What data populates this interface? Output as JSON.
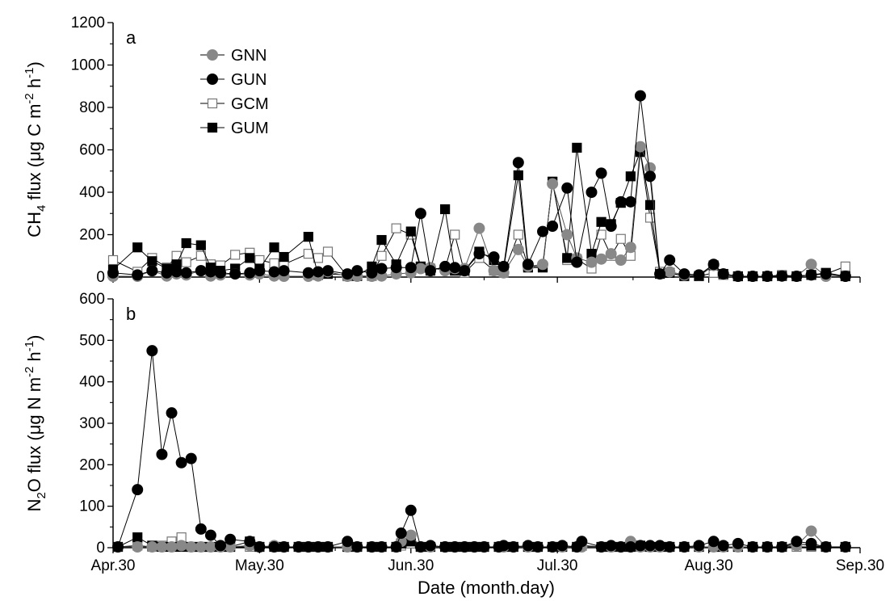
{
  "chart_data": [
    {
      "panel": "a",
      "type": "line",
      "xlabel": "Date (month.day)",
      "ylabel": "CH4 flux (μg C m-2 h-1)",
      "ylabel_parts": {
        "pre": "CH",
        "sub": "4",
        "mid": " flux (μg C m",
        "sup1": "-2",
        "mid2": " h",
        "sup2": "-1",
        "post": ")"
      },
      "x_tick_labels": [
        "Apr.30",
        "May.30",
        "Jun.30",
        "Jul.30",
        "Aug.30",
        "Sep.30"
      ],
      "x_tick_days": [
        0,
        30,
        61,
        91,
        122,
        153
      ],
      "xlim": [
        0,
        153
      ],
      "ylim": [
        0,
        1200
      ],
      "y_ticks": [
        0,
        200,
        400,
        600,
        800,
        1000,
        1200
      ],
      "legend_position": "top-left",
      "series": [
        {
          "name": "GNN",
          "marker": "circle",
          "fill": "#888888",
          "x": [
            0,
            5,
            8,
            11,
            13,
            15,
            18,
            20,
            22,
            25,
            28,
            30,
            33,
            35,
            40,
            42,
            44,
            48,
            50,
            53,
            55,
            58,
            61,
            63,
            65,
            68,
            70,
            72,
            75,
            78,
            80,
            83,
            85,
            88,
            90,
            93,
            95,
            98,
            100,
            102,
            104,
            106,
            108,
            110,
            112,
            114,
            117,
            120,
            123,
            125,
            128,
            131,
            134,
            137,
            140,
            143,
            146,
            150
          ],
          "y": [
            -20,
            -20,
            30,
            5,
            15,
            10,
            30,
            5,
            10,
            15,
            10,
            15,
            5,
            -10,
            0,
            5,
            25,
            -10,
            -5,
            0,
            5,
            15,
            20,
            40,
            45,
            30,
            40,
            40,
            230,
            30,
            20,
            130,
            50,
            60,
            440,
            200,
            90,
            70,
            85,
            110,
            80,
            140,
            615,
            515,
            15,
            25,
            10,
            10,
            55,
            15,
            -10,
            0,
            -10,
            5,
            -20,
            60,
            0,
            -20
          ]
        },
        {
          "name": "GUN",
          "marker": "circle",
          "fill": "#000000",
          "x": [
            0,
            5,
            8,
            11,
            13,
            15,
            18,
            20,
            22,
            25,
            28,
            30,
            33,
            35,
            40,
            42,
            44,
            48,
            50,
            53,
            55,
            58,
            61,
            63,
            65,
            68,
            70,
            72,
            75,
            78,
            80,
            83,
            85,
            88,
            90,
            93,
            95,
            98,
            100,
            102,
            104,
            106,
            108,
            110,
            112,
            114,
            117,
            120,
            123,
            125,
            128,
            131,
            134,
            137,
            140,
            143,
            146,
            150
          ],
          "y": [
            20,
            10,
            30,
            20,
            25,
            20,
            30,
            25,
            20,
            15,
            20,
            30,
            25,
            30,
            20,
            25,
            30,
            15,
            30,
            20,
            40,
            45,
            45,
            300,
            30,
            50,
            45,
            30,
            110,
            95,
            50,
            540,
            60,
            215,
            240,
            420,
            70,
            400,
            490,
            240,
            355,
            355,
            855,
            475,
            15,
            80,
            15,
            10,
            60,
            15,
            -15,
            -10,
            -15,
            5,
            -10,
            10,
            15,
            -10
          ]
        },
        {
          "name": "GCM",
          "marker": "square",
          "fill": "#ffffff",
          "x": [
            0,
            5,
            8,
            11,
            13,
            15,
            18,
            20,
            22,
            25,
            28,
            30,
            33,
            35,
            40,
            42,
            44,
            48,
            50,
            53,
            55,
            58,
            61,
            63,
            65,
            68,
            70,
            72,
            75,
            78,
            80,
            83,
            85,
            88,
            90,
            93,
            95,
            98,
            100,
            102,
            104,
            106,
            108,
            110,
            112,
            114,
            117,
            120,
            123,
            125,
            128,
            131,
            134,
            137,
            140,
            143,
            146,
            150
          ],
          "y": [
            80,
            25,
            90,
            45,
            100,
            70,
            100,
            60,
            55,
            105,
            115,
            80,
            65,
            60,
            110,
            90,
            120,
            0,
            5,
            5,
            100,
            230,
            200,
            45,
            40,
            40,
            200,
            20,
            90,
            30,
            20,
            200,
            50,
            50,
            450,
            80,
            85,
            40,
            200,
            100,
            180,
            100,
            590,
            280,
            25,
            20,
            -10,
            0,
            20,
            10,
            -20,
            -10,
            0,
            10,
            -10,
            10,
            15,
            50
          ]
        },
        {
          "name": "GUM",
          "marker": "square",
          "fill": "#000000",
          "x": [
            0,
            5,
            8,
            11,
            13,
            15,
            18,
            20,
            22,
            25,
            28,
            30,
            33,
            35,
            40,
            42,
            44,
            48,
            50,
            53,
            55,
            58,
            61,
            63,
            65,
            68,
            70,
            72,
            75,
            78,
            80,
            83,
            85,
            88,
            90,
            93,
            95,
            98,
            100,
            102,
            104,
            106,
            108,
            110,
            112,
            114,
            117,
            120,
            123,
            125,
            128,
            131,
            134,
            137,
            140,
            143,
            146,
            150
          ],
          "y": [
            35,
            140,
            75,
            40,
            60,
            160,
            150,
            45,
            30,
            40,
            90,
            40,
            140,
            95,
            190,
            10,
            15,
            10,
            5,
            50,
            175,
            60,
            215,
            50,
            30,
            320,
            30,
            30,
            120,
            80,
            40,
            480,
            45,
            45,
            450,
            90,
            610,
            110,
            260,
            250,
            350,
            475,
            590,
            340,
            15,
            20,
            5,
            5,
            55,
            15,
            0,
            -5,
            0,
            5,
            0,
            10,
            20,
            0
          ]
        }
      ]
    },
    {
      "panel": "b",
      "type": "line",
      "xlabel": "Date (month.day)",
      "ylabel": "N2O flux (μg N m-2 h-1)",
      "ylabel_parts": {
        "pre": "N",
        "sub": "2",
        "mid": "O flux (μg N m",
        "sup1": "-2",
        "mid2": " h",
        "sup2": "-1",
        "post": ")"
      },
      "x_tick_labels": [
        "Apr.30",
        "May.30",
        "Jun.30",
        "Jul.30",
        "Aug.30",
        "Sep.30"
      ],
      "x_tick_days": [
        0,
        30,
        61,
        91,
        122,
        153
      ],
      "xlim": [
        0,
        153
      ],
      "ylim": [
        0,
        600
      ],
      "y_ticks": [
        0,
        100,
        200,
        300,
        400,
        500,
        600
      ],
      "series": [
        {
          "name": "GNN",
          "marker": "circle",
          "fill": "#888888",
          "x": [
            1,
            5,
            8,
            10,
            12,
            14,
            16,
            18,
            20,
            22,
            24,
            28,
            30,
            33,
            35,
            38,
            40,
            42,
            44,
            48,
            50,
            53,
            55,
            58,
            59,
            61,
            63,
            65,
            68,
            70,
            72,
            74,
            76,
            79,
            80,
            82,
            85,
            87,
            90,
            92,
            95,
            96,
            100,
            102,
            104,
            106,
            108,
            110,
            112,
            114,
            117,
            120,
            123,
            125,
            128,
            131,
            134,
            137,
            140,
            143,
            146,
            150
          ],
          "y": [
            0,
            0,
            -5,
            0,
            0,
            5,
            0,
            0,
            0,
            0,
            0,
            5,
            0,
            5,
            0,
            0,
            -5,
            0,
            0,
            0,
            0,
            0,
            0,
            0,
            15,
            30,
            0,
            0,
            0,
            0,
            0,
            0,
            -5,
            0,
            0,
            0,
            0,
            -5,
            0,
            0,
            0,
            0,
            0,
            0,
            0,
            15,
            0,
            0,
            0,
            0,
            0,
            0,
            0,
            0,
            0,
            0,
            0,
            0,
            5,
            40,
            0,
            0
          ]
        },
        {
          "name": "GUN",
          "marker": "circle",
          "fill": "#000000",
          "x": [
            1,
            5,
            8,
            10,
            12,
            14,
            16,
            18,
            20,
            22,
            24,
            28,
            30,
            33,
            35,
            38,
            40,
            42,
            44,
            48,
            50,
            53,
            55,
            58,
            59,
            61,
            63,
            65,
            68,
            70,
            72,
            74,
            76,
            79,
            80,
            82,
            85,
            87,
            90,
            92,
            95,
            96,
            100,
            102,
            104,
            106,
            108,
            110,
            112,
            114,
            117,
            120,
            123,
            125,
            128,
            131,
            134,
            137,
            140,
            143,
            146,
            150
          ],
          "y": [
            0,
            140,
            475,
            225,
            325,
            205,
            215,
            45,
            30,
            5,
            20,
            15,
            0,
            0,
            0,
            0,
            0,
            0,
            0,
            15,
            0,
            0,
            0,
            0,
            35,
            90,
            0,
            5,
            0,
            0,
            0,
            0,
            0,
            0,
            5,
            0,
            5,
            0,
            0,
            5,
            0,
            15,
            0,
            5,
            0,
            0,
            5,
            5,
            5,
            0,
            0,
            5,
            15,
            5,
            10,
            0,
            0,
            0,
            15,
            10,
            0,
            0
          ]
        },
        {
          "name": "GCM",
          "marker": "square",
          "fill": "#ffffff",
          "x": [
            1,
            5,
            8,
            10,
            12,
            14,
            16,
            18,
            20,
            22,
            24,
            28,
            30,
            33,
            35,
            38,
            40,
            42,
            44,
            48,
            50,
            53,
            55,
            58,
            59,
            61,
            63,
            65,
            68,
            70,
            72,
            74,
            76,
            79,
            80,
            82,
            85,
            87,
            90,
            92,
            95,
            96,
            100,
            102,
            104,
            106,
            108,
            110,
            112,
            114,
            117,
            120,
            123,
            125,
            128,
            131,
            134,
            137,
            140,
            143,
            146,
            150
          ],
          "y": [
            -5,
            5,
            0,
            5,
            15,
            25,
            0,
            0,
            0,
            0,
            0,
            0,
            0,
            0,
            0,
            0,
            0,
            0,
            0,
            0,
            0,
            0,
            0,
            0,
            5,
            10,
            0,
            0,
            0,
            0,
            0,
            0,
            0,
            0,
            0,
            0,
            -5,
            0,
            0,
            0,
            0,
            5,
            0,
            0,
            0,
            0,
            -5,
            0,
            0,
            0,
            0,
            0,
            0,
            0,
            0,
            0,
            0,
            0,
            0,
            0,
            0,
            0
          ]
        },
        {
          "name": "GUM",
          "marker": "square",
          "fill": "#000000",
          "x": [
            1,
            5,
            8,
            10,
            12,
            14,
            16,
            18,
            20,
            22,
            24,
            28,
            30,
            33,
            35,
            38,
            40,
            42,
            44,
            48,
            50,
            53,
            55,
            58,
            59,
            61,
            63,
            65,
            68,
            70,
            72,
            74,
            76,
            79,
            80,
            82,
            85,
            87,
            90,
            92,
            95,
            96,
            100,
            102,
            104,
            106,
            108,
            110,
            112,
            114,
            117,
            120,
            123,
            125,
            128,
            131,
            134,
            137,
            140,
            143,
            146,
            150
          ],
          "y": [
            0,
            25,
            5,
            0,
            0,
            0,
            0,
            0,
            0,
            0,
            0,
            15,
            0,
            0,
            0,
            0,
            0,
            0,
            0,
            0,
            0,
            0,
            0,
            0,
            10,
            15,
            0,
            0,
            0,
            0,
            0,
            0,
            0,
            0,
            0,
            0,
            0,
            0,
            0,
            0,
            0,
            5,
            0,
            0,
            0,
            0,
            5,
            0,
            0,
            0,
            0,
            0,
            0,
            0,
            0,
            0,
            0,
            0,
            10,
            5,
            0,
            0
          ]
        }
      ]
    }
  ]
}
